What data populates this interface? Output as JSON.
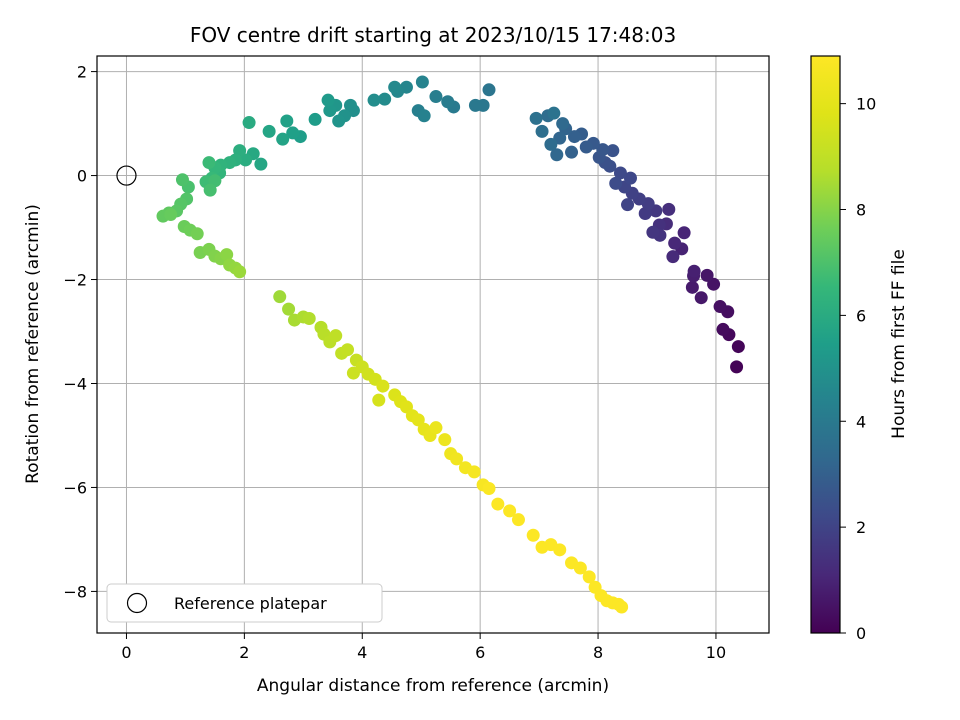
{
  "chart_data": {
    "type": "scatter",
    "title": "FOV centre drift starting at 2023/10/15 17:48:03",
    "xlabel": "Angular distance from reference (arcmin)",
    "ylabel": "Rotation from reference (arcmin)",
    "xlim": [
      -0.5,
      10.9
    ],
    "ylim": [
      -8.8,
      2.3
    ],
    "xticks": [
      0,
      2,
      4,
      6,
      8,
      10
    ],
    "yticks": [
      -8,
      -6,
      -4,
      -2,
      0,
      2
    ],
    "grid": true,
    "colormap": "viridis",
    "colorbar": {
      "label": "Hours from first FF file",
      "range": [
        0,
        10.9
      ],
      "ticks": [
        0,
        2,
        4,
        6,
        8,
        10
      ]
    },
    "legend": {
      "position": "lower-left",
      "entries": [
        "Reference platepar"
      ]
    },
    "reference_point": {
      "x": 0,
      "y": 0
    },
    "series": [
      {
        "points": [
          {
            "x": 10.35,
            "y": -3.68,
            "c": 0.05
          },
          {
            "x": 10.38,
            "y": -3.29,
            "c": 0.12
          },
          {
            "x": 10.22,
            "y": -3.06,
            "c": 0.2
          },
          {
            "x": 10.12,
            "y": -2.96,
            "c": 0.28
          },
          {
            "x": 10.2,
            "y": -2.62,
            "c": 0.35
          },
          {
            "x": 10.07,
            "y": -2.52,
            "c": 0.42
          },
          {
            "x": 9.96,
            "y": -2.09,
            "c": 0.5
          },
          {
            "x": 9.85,
            "y": -1.92,
            "c": 0.58
          },
          {
            "x": 9.75,
            "y": -2.35,
            "c": 0.65
          },
          {
            "x": 9.6,
            "y": -2.15,
            "c": 0.72
          },
          {
            "x": 9.62,
            "y": -1.93,
            "c": 0.8
          },
          {
            "x": 9.63,
            "y": -1.84,
            "c": 0.88
          },
          {
            "x": 9.42,
            "y": -1.41,
            "c": 0.95
          },
          {
            "x": 9.46,
            "y": -1.1,
            "c": 1.02
          },
          {
            "x": 9.3,
            "y": -1.3,
            "c": 1.1
          },
          {
            "x": 9.27,
            "y": -1.56,
            "c": 1.18
          },
          {
            "x": 9.16,
            "y": -0.93,
            "c": 1.25
          },
          {
            "x": 9.2,
            "y": -0.65,
            "c": 1.32
          },
          {
            "x": 9.04,
            "y": -0.95,
            "c": 1.4
          },
          {
            "x": 9.05,
            "y": -1.15,
            "c": 1.48
          },
          {
            "x": 8.93,
            "y": -1.09,
            "c": 1.55
          },
          {
            "x": 8.98,
            "y": -0.68,
            "c": 1.62
          },
          {
            "x": 8.8,
            "y": -0.73,
            "c": 1.7
          },
          {
            "x": 8.85,
            "y": -0.54,
            "c": 1.78
          },
          {
            "x": 8.7,
            "y": -0.45,
            "c": 1.85
          },
          {
            "x": 8.58,
            "y": -0.34,
            "c": 1.92
          },
          {
            "x": 8.5,
            "y": -0.56,
            "c": 2.0
          },
          {
            "x": 8.45,
            "y": -0.22,
            "c": 2.08
          },
          {
            "x": 8.55,
            "y": -0.05,
            "c": 2.15
          },
          {
            "x": 8.38,
            "y": 0.05,
            "c": 2.22
          },
          {
            "x": 8.3,
            "y": -0.15,
            "c": 2.3
          },
          {
            "x": 8.2,
            "y": 0.18,
            "c": 2.38
          },
          {
            "x": 8.12,
            "y": 0.25,
            "c": 2.45
          },
          {
            "x": 8.25,
            "y": 0.48,
            "c": 2.52
          },
          {
            "x": 8.02,
            "y": 0.35,
            "c": 2.6
          },
          {
            "x": 8.08,
            "y": 0.5,
            "c": 2.68
          },
          {
            "x": 7.92,
            "y": 0.62,
            "c": 2.75
          },
          {
            "x": 7.8,
            "y": 0.55,
            "c": 2.82
          },
          {
            "x": 7.72,
            "y": 0.8,
            "c": 2.9
          },
          {
            "x": 7.6,
            "y": 0.75,
            "c": 2.98
          },
          {
            "x": 7.55,
            "y": 0.45,
            "c": 3.05
          },
          {
            "x": 7.45,
            "y": 0.9,
            "c": 3.12
          },
          {
            "x": 7.35,
            "y": 0.72,
            "c": 3.2
          },
          {
            "x": 7.3,
            "y": 0.4,
            "c": 3.28
          },
          {
            "x": 7.4,
            "y": 1.0,
            "c": 3.35
          },
          {
            "x": 7.2,
            "y": 0.6,
            "c": 3.42
          },
          {
            "x": 7.15,
            "y": 1.15,
            "c": 3.5
          },
          {
            "x": 7.05,
            "y": 0.85,
            "c": 3.58
          },
          {
            "x": 6.95,
            "y": 1.1,
            "c": 3.65
          },
          {
            "x": 7.25,
            "y": 1.2,
            "c": 3.72
          },
          {
            "x": 6.15,
            "y": 1.65,
            "c": 3.8
          },
          {
            "x": 6.05,
            "y": 1.35,
            "c": 3.88
          },
          {
            "x": 5.92,
            "y": 1.35,
            "c": 3.95
          },
          {
            "x": 5.55,
            "y": 1.32,
            "c": 4.02
          },
          {
            "x": 5.45,
            "y": 1.42,
            "c": 4.1
          },
          {
            "x": 5.25,
            "y": 1.52,
            "c": 4.18
          },
          {
            "x": 4.95,
            "y": 1.25,
            "c": 4.25
          },
          {
            "x": 5.05,
            "y": 1.15,
            "c": 4.32
          },
          {
            "x": 5.02,
            "y": 1.8,
            "c": 4.4
          },
          {
            "x": 4.75,
            "y": 1.7,
            "c": 4.48
          },
          {
            "x": 4.6,
            "y": 1.62,
            "c": 4.55
          },
          {
            "x": 4.55,
            "y": 1.7,
            "c": 4.62
          },
          {
            "x": 4.38,
            "y": 1.47,
            "c": 4.7
          },
          {
            "x": 4.2,
            "y": 1.45,
            "c": 4.78
          },
          {
            "x": 3.85,
            "y": 1.25,
            "c": 4.85
          },
          {
            "x": 3.8,
            "y": 1.35,
            "c": 4.92
          },
          {
            "x": 3.7,
            "y": 1.15,
            "c": 5.0
          },
          {
            "x": 3.6,
            "y": 1.05,
            "c": 5.08
          },
          {
            "x": 3.55,
            "y": 1.35,
            "c": 5.15
          },
          {
            "x": 3.45,
            "y": 1.25,
            "c": 5.22
          },
          {
            "x": 3.42,
            "y": 1.45,
            "c": 5.3
          },
          {
            "x": 3.2,
            "y": 1.08,
            "c": 5.38
          },
          {
            "x": 2.95,
            "y": 0.75,
            "c": 5.45
          },
          {
            "x": 2.82,
            "y": 0.82,
            "c": 5.52
          },
          {
            "x": 2.72,
            "y": 1.05,
            "c": 5.6
          },
          {
            "x": 2.65,
            "y": 0.7,
            "c": 5.68
          },
          {
            "x": 2.42,
            "y": 0.85,
            "c": 5.75
          },
          {
            "x": 2.28,
            "y": 0.22,
            "c": 5.82
          },
          {
            "x": 2.15,
            "y": 0.42,
            "c": 5.9
          },
          {
            "x": 2.08,
            "y": 1.02,
            "c": 5.98
          },
          {
            "x": 2.02,
            "y": 0.3,
            "c": 6.05
          },
          {
            "x": 1.92,
            "y": 0.48,
            "c": 6.12
          },
          {
            "x": 1.85,
            "y": 0.3,
            "c": 6.2
          },
          {
            "x": 1.75,
            "y": 0.25,
            "c": 6.28
          },
          {
            "x": 1.6,
            "y": 0.2,
            "c": 6.35
          },
          {
            "x": 1.58,
            "y": 0.05,
            "c": 6.42
          },
          {
            "x": 1.5,
            "y": 0.15,
            "c": 6.5
          },
          {
            "x": 1.45,
            "y": -0.05,
            "c": 6.58
          },
          {
            "x": 1.4,
            "y": 0.25,
            "c": 6.65
          },
          {
            "x": 1.35,
            "y": -0.12,
            "c": 6.72
          },
          {
            "x": 1.5,
            "y": -0.1,
            "c": 6.8
          },
          {
            "x": 1.42,
            "y": -0.28,
            "c": 6.88
          },
          {
            "x": 1.05,
            "y": -0.22,
            "c": 6.95
          },
          {
            "x": 0.95,
            "y": -0.08,
            "c": 7.02
          },
          {
            "x": 1.02,
            "y": -0.45,
            "c": 7.1
          },
          {
            "x": 0.92,
            "y": -0.55,
            "c": 7.18
          },
          {
            "x": 0.85,
            "y": -0.68,
            "c": 7.25
          },
          {
            "x": 0.72,
            "y": -0.72,
            "c": 7.32
          },
          {
            "x": 0.62,
            "y": -0.78,
            "c": 7.4
          },
          {
            "x": 0.75,
            "y": -0.75,
            "c": 7.48
          },
          {
            "x": 0.98,
            "y": -0.98,
            "c": 7.55
          },
          {
            "x": 1.08,
            "y": -1.05,
            "c": 7.62
          },
          {
            "x": 1.2,
            "y": -1.12,
            "c": 7.7
          },
          {
            "x": 1.25,
            "y": -1.48,
            "c": 7.78
          },
          {
            "x": 1.4,
            "y": -1.42,
            "c": 7.85
          },
          {
            "x": 1.5,
            "y": -1.55,
            "c": 7.92
          },
          {
            "x": 1.6,
            "y": -1.6,
            "c": 8.0
          },
          {
            "x": 1.7,
            "y": -1.52,
            "c": 8.08
          },
          {
            "x": 1.75,
            "y": -1.72,
            "c": 8.15
          },
          {
            "x": 1.85,
            "y": -1.78,
            "c": 8.22
          },
          {
            "x": 1.92,
            "y": -1.85,
            "c": 8.3
          },
          {
            "x": 2.6,
            "y": -2.33,
            "c": 8.38
          },
          {
            "x": 2.75,
            "y": -2.57,
            "c": 8.45
          },
          {
            "x": 2.85,
            "y": -2.78,
            "c": 8.52
          },
          {
            "x": 3.0,
            "y": -2.72,
            "c": 8.6
          },
          {
            "x": 3.1,
            "y": -2.75,
            "c": 8.68
          },
          {
            "x": 3.3,
            "y": -2.92,
            "c": 8.75
          },
          {
            "x": 3.35,
            "y": -3.05,
            "c": 8.82
          },
          {
            "x": 3.45,
            "y": -3.2,
            "c": 8.9
          },
          {
            "x": 3.55,
            "y": -3.08,
            "c": 8.98
          },
          {
            "x": 3.65,
            "y": -3.42,
            "c": 9.05
          },
          {
            "x": 3.75,
            "y": -3.35,
            "c": 9.12
          },
          {
            "x": 3.9,
            "y": -3.55,
            "c": 9.2
          },
          {
            "x": 3.85,
            "y": -3.8,
            "c": 9.28
          },
          {
            "x": 4.0,
            "y": -3.68,
            "c": 9.35
          },
          {
            "x": 4.1,
            "y": -3.82,
            "c": 9.42
          },
          {
            "x": 4.22,
            "y": -3.92,
            "c": 9.5
          },
          {
            "x": 4.28,
            "y": -4.32,
            "c": 9.58
          },
          {
            "x": 4.35,
            "y": -4.05,
            "c": 9.65
          },
          {
            "x": 4.55,
            "y": -4.22,
            "c": 9.72
          },
          {
            "x": 4.65,
            "y": -4.35,
            "c": 9.8
          },
          {
            "x": 4.75,
            "y": -4.45,
            "c": 9.88
          },
          {
            "x": 4.85,
            "y": -4.62,
            "c": 9.95
          },
          {
            "x": 4.95,
            "y": -4.7,
            "c": 10.02
          },
          {
            "x": 5.05,
            "y": -4.88,
            "c": 10.1
          },
          {
            "x": 5.15,
            "y": -5.0,
            "c": 10.18
          },
          {
            "x": 5.25,
            "y": -4.85,
            "c": 10.25
          },
          {
            "x": 5.4,
            "y": -5.08,
            "c": 10.32
          },
          {
            "x": 5.5,
            "y": -5.35,
            "c": 10.4
          },
          {
            "x": 5.6,
            "y": -5.45,
            "c": 10.48
          },
          {
            "x": 5.75,
            "y": -5.62,
            "c": 10.55
          },
          {
            "x": 5.9,
            "y": -5.7,
            "c": 10.62
          },
          {
            "x": 6.05,
            "y": -5.95,
            "c": 10.7
          },
          {
            "x": 6.15,
            "y": -6.02,
            "c": 10.78
          },
          {
            "x": 6.3,
            "y": -6.32,
            "c": 10.85
          },
          {
            "x": 6.5,
            "y": -6.45,
            "c": 10.88
          },
          {
            "x": 6.65,
            "y": -6.62,
            "c": 10.88
          },
          {
            "x": 6.9,
            "y": -6.92,
            "c": 10.88
          },
          {
            "x": 7.05,
            "y": -7.15,
            "c": 10.88
          },
          {
            "x": 7.2,
            "y": -7.1,
            "c": 10.88
          },
          {
            "x": 7.35,
            "y": -7.2,
            "c": 10.88
          },
          {
            "x": 7.55,
            "y": -7.45,
            "c": 10.88
          },
          {
            "x": 7.7,
            "y": -7.55,
            "c": 10.88
          },
          {
            "x": 7.85,
            "y": -7.72,
            "c": 10.88
          },
          {
            "x": 7.95,
            "y": -7.92,
            "c": 10.88
          },
          {
            "x": 8.05,
            "y": -8.08,
            "c": 10.88
          },
          {
            "x": 8.15,
            "y": -8.18,
            "c": 10.88
          },
          {
            "x": 8.25,
            "y": -8.22,
            "c": 10.88
          },
          {
            "x": 8.35,
            "y": -8.25,
            "c": 10.88
          },
          {
            "x": 8.4,
            "y": -8.3,
            "c": 10.88
          }
        ]
      }
    ]
  }
}
